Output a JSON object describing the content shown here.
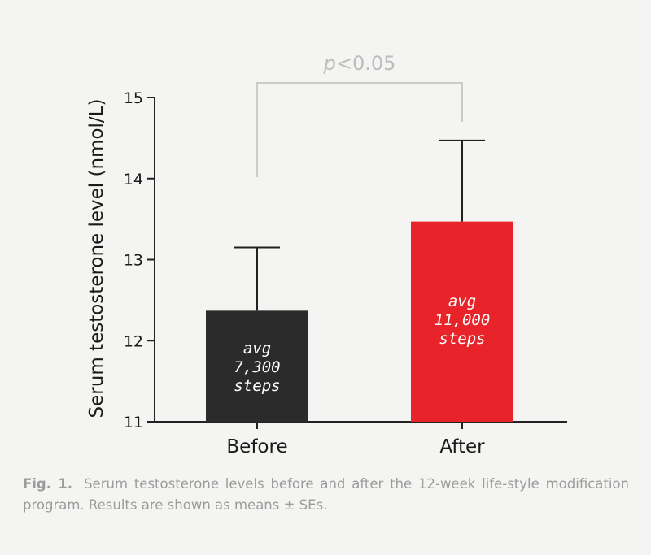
{
  "chart_data": {
    "type": "bar",
    "categories": [
      "Before",
      "After"
    ],
    "values": [
      12.37,
      13.47
    ],
    "errors": [
      0.78,
      1.0
    ],
    "ylabel": "Serum testosterone level (nmol/L)",
    "xlabel": "",
    "ylim": [
      11,
      15
    ],
    "yticks": [
      11,
      12,
      13,
      14,
      15
    ],
    "bar_labels": [
      [
        "avg",
        "7,300",
        "steps"
      ],
      [
        "avg",
        "11,000",
        "steps"
      ]
    ],
    "bar_colors": [
      "#2b2b2b",
      "#e8242a"
    ],
    "significance": {
      "prefix": "p",
      "suffix": "<0.05"
    },
    "grid": false
  },
  "caption": {
    "label": "Fig. 1.",
    "text": "Serum testosterone levels before and after the 12-week life-style modification program. Results are shown as means ± SEs."
  }
}
